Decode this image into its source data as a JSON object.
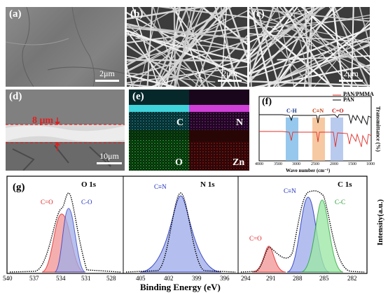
{
  "panel_a": {
    "label": "(a)",
    "scale": "2μm"
  },
  "panel_b": {
    "label": "(b)",
    "scale": "2μm"
  },
  "panel_c": {
    "label": "(c)",
    "scale": "2μm"
  },
  "panel_d": {
    "label": "(d)",
    "thickness": "8 μm",
    "scale": "10μm"
  },
  "panel_e": {
    "label": "(e)",
    "maps": [
      "C",
      "N",
      "O",
      "Zn"
    ]
  },
  "panel_f": {
    "label": "(f)",
    "legend": [
      "PAN/PMMA",
      "PAN"
    ],
    "bands": [
      "C-H",
      "C≡N",
      "C=O"
    ],
    "xlabel": "Wave number (cm⁻¹)",
    "ylabel": "Transmittance (%)",
    "xticks": [
      "4000",
      "3500",
      "3000",
      "2500",
      "2000",
      "1500",
      "1000"
    ]
  },
  "panel_g": {
    "label": "(g)",
    "xlabel": "Binding  Energy (eV)",
    "ylabel": "Intensity(a.u.)",
    "o1s": {
      "title": "O 1s",
      "peaks": [
        "C=O",
        "C-O"
      ],
      "xticks": [
        "540",
        "537",
        "534",
        "531",
        "528"
      ]
    },
    "n1s": {
      "title": "N 1s",
      "peaks": [
        "C≡N"
      ],
      "xticks": [
        "405",
        "402",
        "399",
        "396"
      ]
    },
    "c1s": {
      "title": "C 1s",
      "peaks": [
        "C≡N",
        "C-C",
        "C=O"
      ],
      "xticks": [
        "294",
        "291",
        "288",
        "285",
        "282"
      ]
    }
  },
  "colors": {
    "legend_pmma": "#e0302a",
    "legend_pan": "#000000",
    "band_ch": "#6ab0e6",
    "band_cn": "#f2b27a",
    "band_co": "#9bb3e8"
  }
}
